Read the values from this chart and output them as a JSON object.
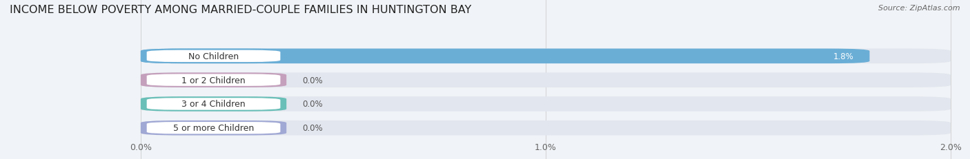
{
  "title": "INCOME BELOW POVERTY AMONG MARRIED-COUPLE FAMILIES IN HUNTINGTON BAY",
  "source": "Source: ZipAtlas.com",
  "categories": [
    "No Children",
    "1 or 2 Children",
    "3 or 4 Children",
    "5 or more Children"
  ],
  "values": [
    1.8,
    0.0,
    0.0,
    0.0
  ],
  "bar_colors": [
    "#6aaed6",
    "#c4a0bc",
    "#6abfb8",
    "#a0a8d4"
  ],
  "xlim": [
    0.0,
    2.0
  ],
  "xticks": [
    0.0,
    1.0,
    2.0
  ],
  "xtick_labels": [
    "0.0%",
    "1.0%",
    "2.0%"
  ],
  "background_color": "#f0f3f7",
  "bar_bg_color": "#e2e6ee",
  "title_fontsize": 11.5,
  "tick_fontsize": 9,
  "label_fontsize": 9,
  "value_fontsize": 8.5
}
